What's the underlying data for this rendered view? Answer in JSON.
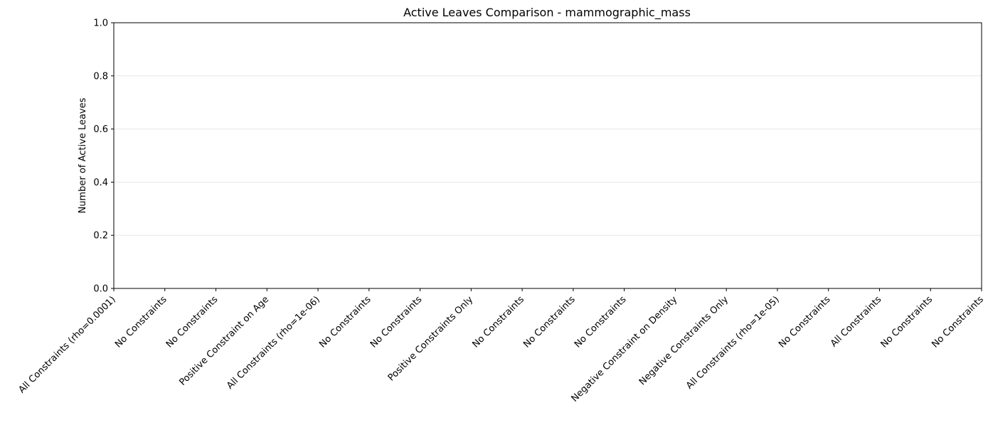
{
  "chart_data": {
    "type": "bar",
    "title": "Active Leaves Comparison - mammographic_mass",
    "xlabel": "",
    "ylabel": "Number of Active Leaves",
    "ylim": [
      0,
      1.0
    ],
    "yticks": [
      "0.0",
      "0.2",
      "0.4",
      "0.6",
      "0.8",
      "1.0"
    ],
    "grid": "y",
    "categories": [
      "All Constraints (rho=0.0001)",
      "No Constraints",
      "No Constraints",
      "Positive Constraint on Age",
      "All Constraints (rho=1e-06)",
      "No Constraints",
      "No Constraints",
      "Positive Constraints Only",
      "No Constraints",
      "No Constraints",
      "No Constraints",
      "Negative Constraint on Density",
      "Negative Constraints Only",
      "All Constraints (rho=1e-05)",
      "No Constraints",
      "All Constraints",
      "No Constraints",
      "No Constraints"
    ],
    "values": [
      0,
      0,
      0,
      0,
      0,
      0,
      0,
      0,
      0,
      0,
      0,
      0,
      0,
      0,
      0,
      0,
      0,
      0
    ]
  }
}
